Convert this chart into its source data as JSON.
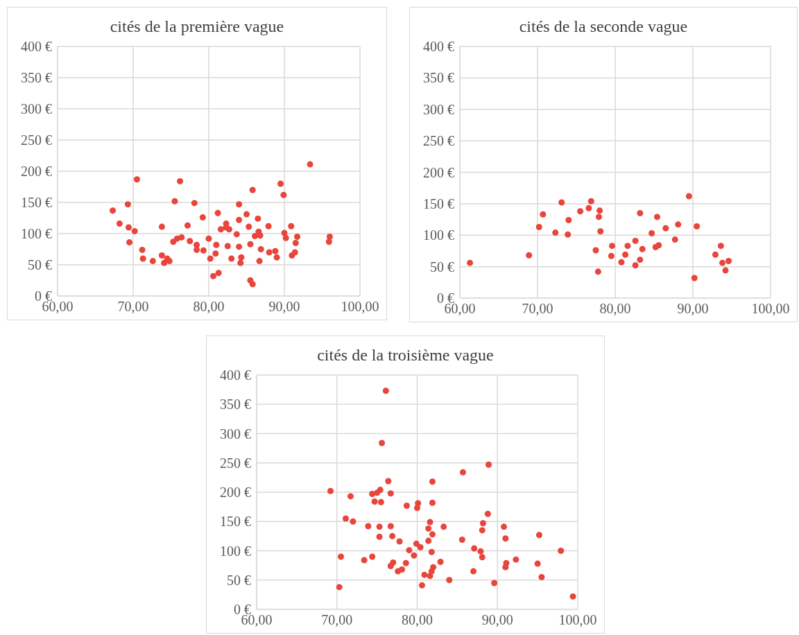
{
  "chart_data": [
    {
      "type": "scatter",
      "title": "cités de la première vague",
      "xlim": [
        60,
        100
      ],
      "xticks": [
        {
          "value": 60,
          "label": "60,00"
        },
        {
          "value": 70,
          "label": "70,00"
        },
        {
          "value": 80,
          "label": "80,00"
        },
        {
          "value": 90,
          "label": "90,00"
        },
        {
          "value": 100,
          "label": "100,00"
        }
      ],
      "ylim": [
        0,
        400
      ],
      "yticks": [
        {
          "value": 0,
          "label": "0 €"
        },
        {
          "value": 50,
          "label": "50 €"
        },
        {
          "value": 100,
          "label": "100 €"
        },
        {
          "value": 150,
          "label": "150 €"
        },
        {
          "value": 200,
          "label": "200 €"
        },
        {
          "value": 250,
          "label": "250 €"
        },
        {
          "value": 300,
          "label": "300 €"
        },
        {
          "value": 350,
          "label": "350 €"
        },
        {
          "value": 400,
          "label": "400 €"
        }
      ],
      "grid": true,
      "marker": "circle",
      "series": [
        {
          "color": "#e8453c",
          "x": [
            67.3,
            68.2,
            69.3,
            69.4,
            69.5,
            70.2,
            70.5,
            71.2,
            71.3,
            72.6,
            73.8,
            73.8,
            74.1,
            74.5,
            74.8,
            75.3,
            75.5,
            75.8,
            76.2,
            76.4,
            77.2,
            77.5,
            78.1,
            78.4,
            78.4,
            79.2,
            79.3,
            80.0,
            80.2,
            80.6,
            80.9,
            81.0,
            81.2,
            81.3,
            81.6,
            82.3,
            82.3,
            82.5,
            82.7,
            83.0,
            83.7,
            84.0,
            84.0,
            84.0,
            84.2,
            84.3,
            85.0,
            85.3,
            85.5,
            85.5,
            85.8,
            85.8,
            86.1,
            86.5,
            86.6,
            86.7,
            86.8,
            86.9,
            87.9,
            88.0,
            88.8,
            89.0,
            89.5,
            89.9,
            90.0,
            90.2,
            90.9,
            91.0,
            91.4,
            91.5,
            91.7,
            93.4,
            95.9,
            96.0
          ],
          "values": [
            137,
            116,
            147,
            110,
            86,
            104,
            187,
            74,
            60,
            56,
            111,
            65,
            53,
            60,
            56,
            87,
            152,
            92,
            184,
            94,
            113,
            88,
            149,
            82,
            74,
            126,
            73,
            92,
            60,
            32,
            68,
            82,
            133,
            37,
            107,
            110,
            116,
            80,
            107,
            60,
            99,
            147,
            122,
            79,
            53,
            62,
            131,
            111,
            83,
            25,
            170,
            19,
            96,
            124,
            103,
            56,
            97,
            75,
            112,
            70,
            72,
            62,
            180,
            162,
            101,
            93,
            112,
            65,
            70,
            85,
            95,
            211,
            87,
            95
          ]
        }
      ]
    },
    {
      "type": "scatter",
      "title": "cités de la seconde vague",
      "xlim": [
        60,
        100
      ],
      "xticks": [
        {
          "value": 60,
          "label": "60,00"
        },
        {
          "value": 70,
          "label": "70,00"
        },
        {
          "value": 80,
          "label": "80,00"
        },
        {
          "value": 90,
          "label": "90,00"
        },
        {
          "value": 100,
          "label": "100,00"
        }
      ],
      "ylim": [
        0,
        400
      ],
      "yticks": [
        {
          "value": 0,
          "label": "0 €"
        },
        {
          "value": 50,
          "label": "50 €"
        },
        {
          "value": 100,
          "label": "100 €"
        },
        {
          "value": 150,
          "label": "150 €"
        },
        {
          "value": 200,
          "label": "200 €"
        },
        {
          "value": 250,
          "label": "250 €"
        },
        {
          "value": 300,
          "label": "300 €"
        },
        {
          "value": 350,
          "label": "350 €"
        },
        {
          "value": 400,
          "label": "400 €"
        }
      ],
      "grid": true,
      "marker": "circle",
      "series": [
        {
          "color": "#e8453c",
          "x": [
            61.3,
            68.9,
            70.7,
            70.2,
            73.1,
            72.3,
            74.0,
            73.9,
            75.5,
            76.6,
            76.9,
            78.0,
            77.9,
            78.1,
            77.5,
            77.8,
            79.6,
            79.5,
            81.6,
            82.6,
            81.3,
            80.8,
            83.5,
            83.2,
            82.6,
            83.2,
            85.4,
            84.7,
            85.2,
            85.6,
            86.5,
            88.1,
            87.7,
            89.5,
            90.5,
            90.2,
            93.6,
            92.9,
            93.8,
            94.6,
            94.2
          ],
          "values": [
            56,
            68,
            133,
            113,
            152,
            104,
            124,
            101,
            138,
            143,
            154,
            139,
            129,
            106,
            76,
            42,
            83,
            67,
            83,
            91,
            69,
            57,
            78,
            61,
            52,
            135,
            129,
            103,
            81,
            84,
            111,
            117,
            93,
            162,
            114,
            32,
            83,
            69,
            56,
            59,
            44
          ]
        }
      ]
    },
    {
      "type": "scatter",
      "title": "cités de la troisième vague",
      "xlim": [
        60,
        100
      ],
      "xticks": [
        {
          "value": 60,
          "label": "60,00"
        },
        {
          "value": 70,
          "label": "70,00"
        },
        {
          "value": 80,
          "label": "80,00"
        },
        {
          "value": 90,
          "label": "90,00"
        },
        {
          "value": 100,
          "label": "100,00"
        }
      ],
      "ylim": [
        0,
        400
      ],
      "yticks": [
        {
          "value": 0,
          "label": "0 €"
        },
        {
          "value": 50,
          "label": "50 €"
        },
        {
          "value": 100,
          "label": "100 €"
        },
        {
          "value": 150,
          "label": "150 €"
        },
        {
          "value": 200,
          "label": "200 €"
        },
        {
          "value": 250,
          "label": "250 €"
        },
        {
          "value": 300,
          "label": "300 €"
        },
        {
          "value": 350,
          "label": "350 €"
        },
        {
          "value": 400,
          "label": "400 €"
        }
      ],
      "grid": true,
      "marker": "circle",
      "series": [
        {
          "color": "#e8453c",
          "x": [
            76.1,
            75.6,
            76.4,
            81.9,
            85.7,
            88.9,
            69.2,
            71.7,
            74.4,
            75.4,
            75.0,
            76.7,
            74.7,
            75.5,
            78.7,
            80.1,
            80.0,
            81.9,
            88.8,
            88.2,
            88.1,
            90.8,
            91.0,
            95.2,
            97.9,
            71.1,
            72.0,
            73.9,
            75.3,
            76.7,
            75.3,
            76.9,
            77.8,
            81.6,
            81.4,
            81.9,
            81.4,
            83.3,
            85.6,
            79.9,
            80.4,
            79.0,
            79.6,
            81.8,
            87.1,
            87.9,
            88.1,
            70.5,
            73.4,
            74.4,
            77.0,
            76.7,
            78.6,
            77.6,
            78.1,
            82.9,
            82.0,
            81.8,
            80.9,
            81.6,
            84.0,
            80.6,
            87.0,
            89.6,
            91.1,
            92.3,
            91.0,
            95.0,
            95.5,
            70.3,
            99.4
          ],
          "values": [
            373,
            284,
            219,
            218,
            234,
            247,
            202,
            193,
            197,
            204,
            199,
            198,
            184,
            183,
            177,
            181,
            173,
            182,
            163,
            147,
            135,
            141,
            121,
            127,
            100,
            155,
            150,
            142,
            141,
            142,
            124,
            125,
            116,
            149,
            138,
            128,
            117,
            141,
            119,
            112,
            106,
            101,
            92,
            98,
            104,
            99,
            89,
            90,
            84,
            90,
            80,
            74,
            79,
            65,
            68,
            81,
            72,
            65,
            59,
            57,
            50,
            41,
            65,
            45,
            79,
            85,
            72,
            78,
            55,
            38,
            22
          ]
        }
      ]
    }
  ]
}
